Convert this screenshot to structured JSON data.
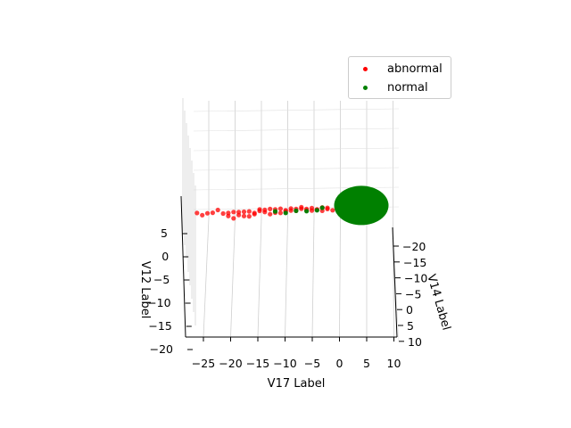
{
  "chart_data": {
    "type": "scatter",
    "projection": "3d",
    "title": "",
    "xlabel": "V17 Label",
    "ylabel": "V14 Label",
    "zlabel": "V12 Label",
    "x_ticks": [
      "−25",
      "−20",
      "−15",
      "−10",
      "−5",
      "0",
      "5",
      "10"
    ],
    "y_ticks": [
      "−20",
      "−15",
      "−10",
      "−5",
      "0",
      "5",
      "10"
    ],
    "z_ticks": [
      "5",
      "0",
      "−5",
      "−10",
      "−15",
      "−20"
    ],
    "xlim": [
      -28,
      11
    ],
    "ylim": [
      -22,
      10
    ],
    "zlim": [
      -20,
      8
    ],
    "grid": true,
    "legend_position": "top-right",
    "series": [
      {
        "name": "abnormal",
        "color": "#ff0000",
        "points": [
          [
            -27,
            4,
            2
          ],
          [
            -25,
            3,
            1
          ],
          [
            -24,
            5,
            3
          ],
          [
            -22,
            2,
            0
          ],
          [
            -21,
            4,
            2
          ],
          [
            -20,
            1,
            1
          ],
          [
            -19,
            3,
            -1
          ],
          [
            -18,
            2,
            2
          ],
          [
            -17,
            0,
            1
          ],
          [
            -16,
            3,
            0
          ],
          [
            -15,
            -2,
            2
          ],
          [
            -14,
            1,
            1
          ],
          [
            -13,
            -1,
            3
          ],
          [
            -12,
            2,
            1
          ],
          [
            -11,
            -3,
            2
          ],
          [
            -10,
            0,
            1
          ],
          [
            -9,
            -2,
            3
          ],
          [
            -8,
            -1,
            1
          ],
          [
            -7,
            -3,
            2
          ],
          [
            -6,
            -2,
            1
          ],
          [
            -5,
            -4,
            2
          ],
          [
            -4,
            -3,
            1
          ],
          [
            -3,
            -5,
            2
          ],
          [
            -2,
            -4,
            1
          ],
          [
            -23,
            2,
            4
          ],
          [
            -21,
            6,
            0
          ],
          [
            -19,
            4,
            3
          ],
          [
            -17,
            5,
            -1
          ],
          [
            -15,
            2,
            3
          ],
          [
            -13,
            3,
            0
          ],
          [
            -12,
            -2,
            2
          ],
          [
            -11,
            1,
            0
          ],
          [
            -9,
            0,
            2
          ],
          [
            -8,
            -4,
            1
          ],
          [
            -6,
            -1,
            3
          ],
          [
            -5,
            -3,
            0
          ],
          [
            -4,
            -2,
            2
          ],
          [
            -3,
            -1,
            1
          ],
          [
            -2,
            -3,
            3
          ],
          [
            -1,
            -2,
            1
          ],
          [
            -26,
            6,
            1
          ],
          [
            -20,
            7,
            -2
          ],
          [
            -18,
            6,
            0
          ],
          [
            -16,
            4,
            2
          ],
          [
            -14,
            -1,
            2
          ],
          [
            -10,
            -2,
            1
          ],
          [
            -7,
            -4,
            3
          ],
          [
            -3,
            -6,
            1
          ]
        ]
      },
      {
        "name": "normal",
        "color": "#008000",
        "points": [
          [
            1,
            -4,
            1
          ],
          [
            2,
            -3,
            1
          ],
          [
            3,
            -5,
            0
          ],
          [
            4,
            -4,
            1
          ],
          [
            5,
            -3,
            1
          ],
          [
            6,
            -5,
            0
          ],
          [
            2,
            -2,
            2
          ],
          [
            3,
            -4,
            2
          ],
          [
            4,
            -2,
            1
          ],
          [
            5,
            -4,
            2
          ],
          [
            6,
            -3,
            1
          ],
          [
            7,
            -4,
            1
          ],
          [
            1,
            -1,
            1
          ],
          [
            2,
            -5,
            0
          ],
          [
            3,
            -3,
            2
          ],
          [
            4,
            -5,
            1
          ],
          [
            5,
            -2,
            2
          ],
          [
            6,
            -4,
            1
          ],
          [
            0,
            -3,
            1
          ],
          [
            1,
            -5,
            2
          ],
          [
            2,
            -4,
            0
          ],
          [
            3,
            -2,
            1
          ],
          [
            4,
            -3,
            2
          ],
          [
            5,
            -5,
            1
          ],
          [
            7,
            -2,
            1
          ],
          [
            8,
            -3,
            0
          ],
          [
            6,
            -2,
            2
          ],
          [
            1,
            -3,
            0
          ],
          [
            2,
            -1,
            1
          ],
          [
            3,
            -1,
            2
          ],
          [
            4,
            -1,
            0
          ],
          [
            5,
            -1,
            1
          ],
          [
            0,
            -2,
            2
          ],
          [
            0,
            -4,
            0
          ],
          [
            7,
            -5,
            1
          ],
          [
            8,
            -4,
            1
          ],
          [
            -8,
            -1,
            1
          ],
          [
            -6,
            -2,
            0
          ],
          [
            -4,
            -2,
            1
          ],
          [
            -12,
            0,
            1
          ],
          [
            -3,
            -6,
            1
          ],
          [
            -10,
            1,
            0
          ],
          [
            2,
            -6,
            3
          ],
          [
            4,
            -6,
            1
          ],
          [
            6,
            -6,
            2
          ],
          [
            3,
            0,
            1
          ],
          [
            5,
            0,
            0
          ],
          [
            9,
            -3,
            1
          ]
        ]
      }
    ]
  }
}
